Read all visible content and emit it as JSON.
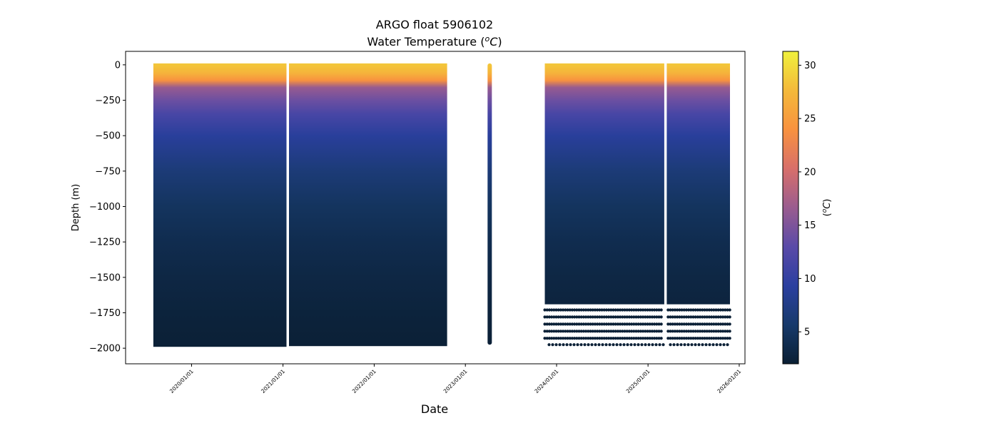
{
  "chart_data": {
    "type": "heatmap",
    "title": "ARGO float 5906102",
    "subtitle_prefix": "Water Temperature (",
    "subtitle_unit_sup": "o",
    "subtitle_unit": "C",
    "subtitle_suffix": ")",
    "xlabel": "Date",
    "ylabel": "Depth (m)",
    "colorbar_label_open": "(",
    "colorbar_label_sup": "o",
    "colorbar_label_unit": "C",
    "colorbar_label_close": ")",
    "x_range": [
      "2019-04-12",
      "2026-01-24"
    ],
    "ylim": [
      -2110,
      95
    ],
    "x_ticks": [
      "2020/01/01",
      "2021/01/01",
      "2022/01/01",
      "2023/01/01",
      "2024/01/01",
      "2025/01/01",
      "2026/01/01"
    ],
    "y_ticks": [
      0,
      -250,
      -500,
      -750,
      -1000,
      -1250,
      -1500,
      -1750,
      -2000
    ],
    "y_tick_labels": [
      "0",
      "−250",
      "−500",
      "−750",
      "−1000",
      "−1250",
      "−1500",
      "−1750",
      "−2000"
    ],
    "colorbar": {
      "range": [
        2,
        31.3
      ],
      "ticks": [
        5,
        10,
        15,
        20,
        25,
        30
      ],
      "tick_labels": [
        "5",
        "10",
        "15",
        "20",
        "25",
        "30"
      ],
      "colormap": [
        "#0a1f33",
        "#173a6b",
        "#2b3fa0",
        "#5a4aa8",
        "#9a5c8f",
        "#d86f6a",
        "#f8923f",
        "#f4b93a",
        "#f0f13c"
      ]
    },
    "profile_segments": [
      {
        "start": "2019-08-01",
        "end": "2021-01-15",
        "bottom_depth": -1990
      },
      {
        "start": "2021-01-25",
        "end": "2022-10-20",
        "bottom_depth": -1985
      },
      {
        "start": "2023-04-05",
        "end": "2023-04-12",
        "bottom_depth": -1975
      },
      {
        "start": "2023-11-15",
        "end": "2025-03-07",
        "bottom_depth": -1690
      },
      {
        "start": "2025-03-17",
        "end": "2025-11-25",
        "bottom_depth": -1690
      }
    ],
    "sparse_depths": [
      -1730,
      -1780,
      -1830,
      -1880,
      -1930,
      -1975
    ],
    "sparse_window": {
      "start": "2023-11-15",
      "end": "2025-11-25"
    },
    "series": [
      {
        "values": [
          {
            "depth": 0,
            "temp": 28.5
          },
          {
            "depth": -60,
            "temp": 27.0
          },
          {
            "depth": -110,
            "temp": 24.0
          },
          {
            "depth": -160,
            "temp": 16.5
          },
          {
            "depth": -250,
            "temp": 14.0
          },
          {
            "depth": -350,
            "temp": 11.5
          },
          {
            "depth": -500,
            "temp": 9.0
          },
          {
            "depth": -750,
            "temp": 6.5
          },
          {
            "depth": -1000,
            "temp": 4.8
          },
          {
            "depth": -1250,
            "temp": 3.8
          },
          {
            "depth": -1500,
            "temp": 3.1
          },
          {
            "depth": -1750,
            "temp": 2.6
          },
          {
            "depth": -2000,
            "temp": 2.2
          }
        ]
      }
    ]
  }
}
